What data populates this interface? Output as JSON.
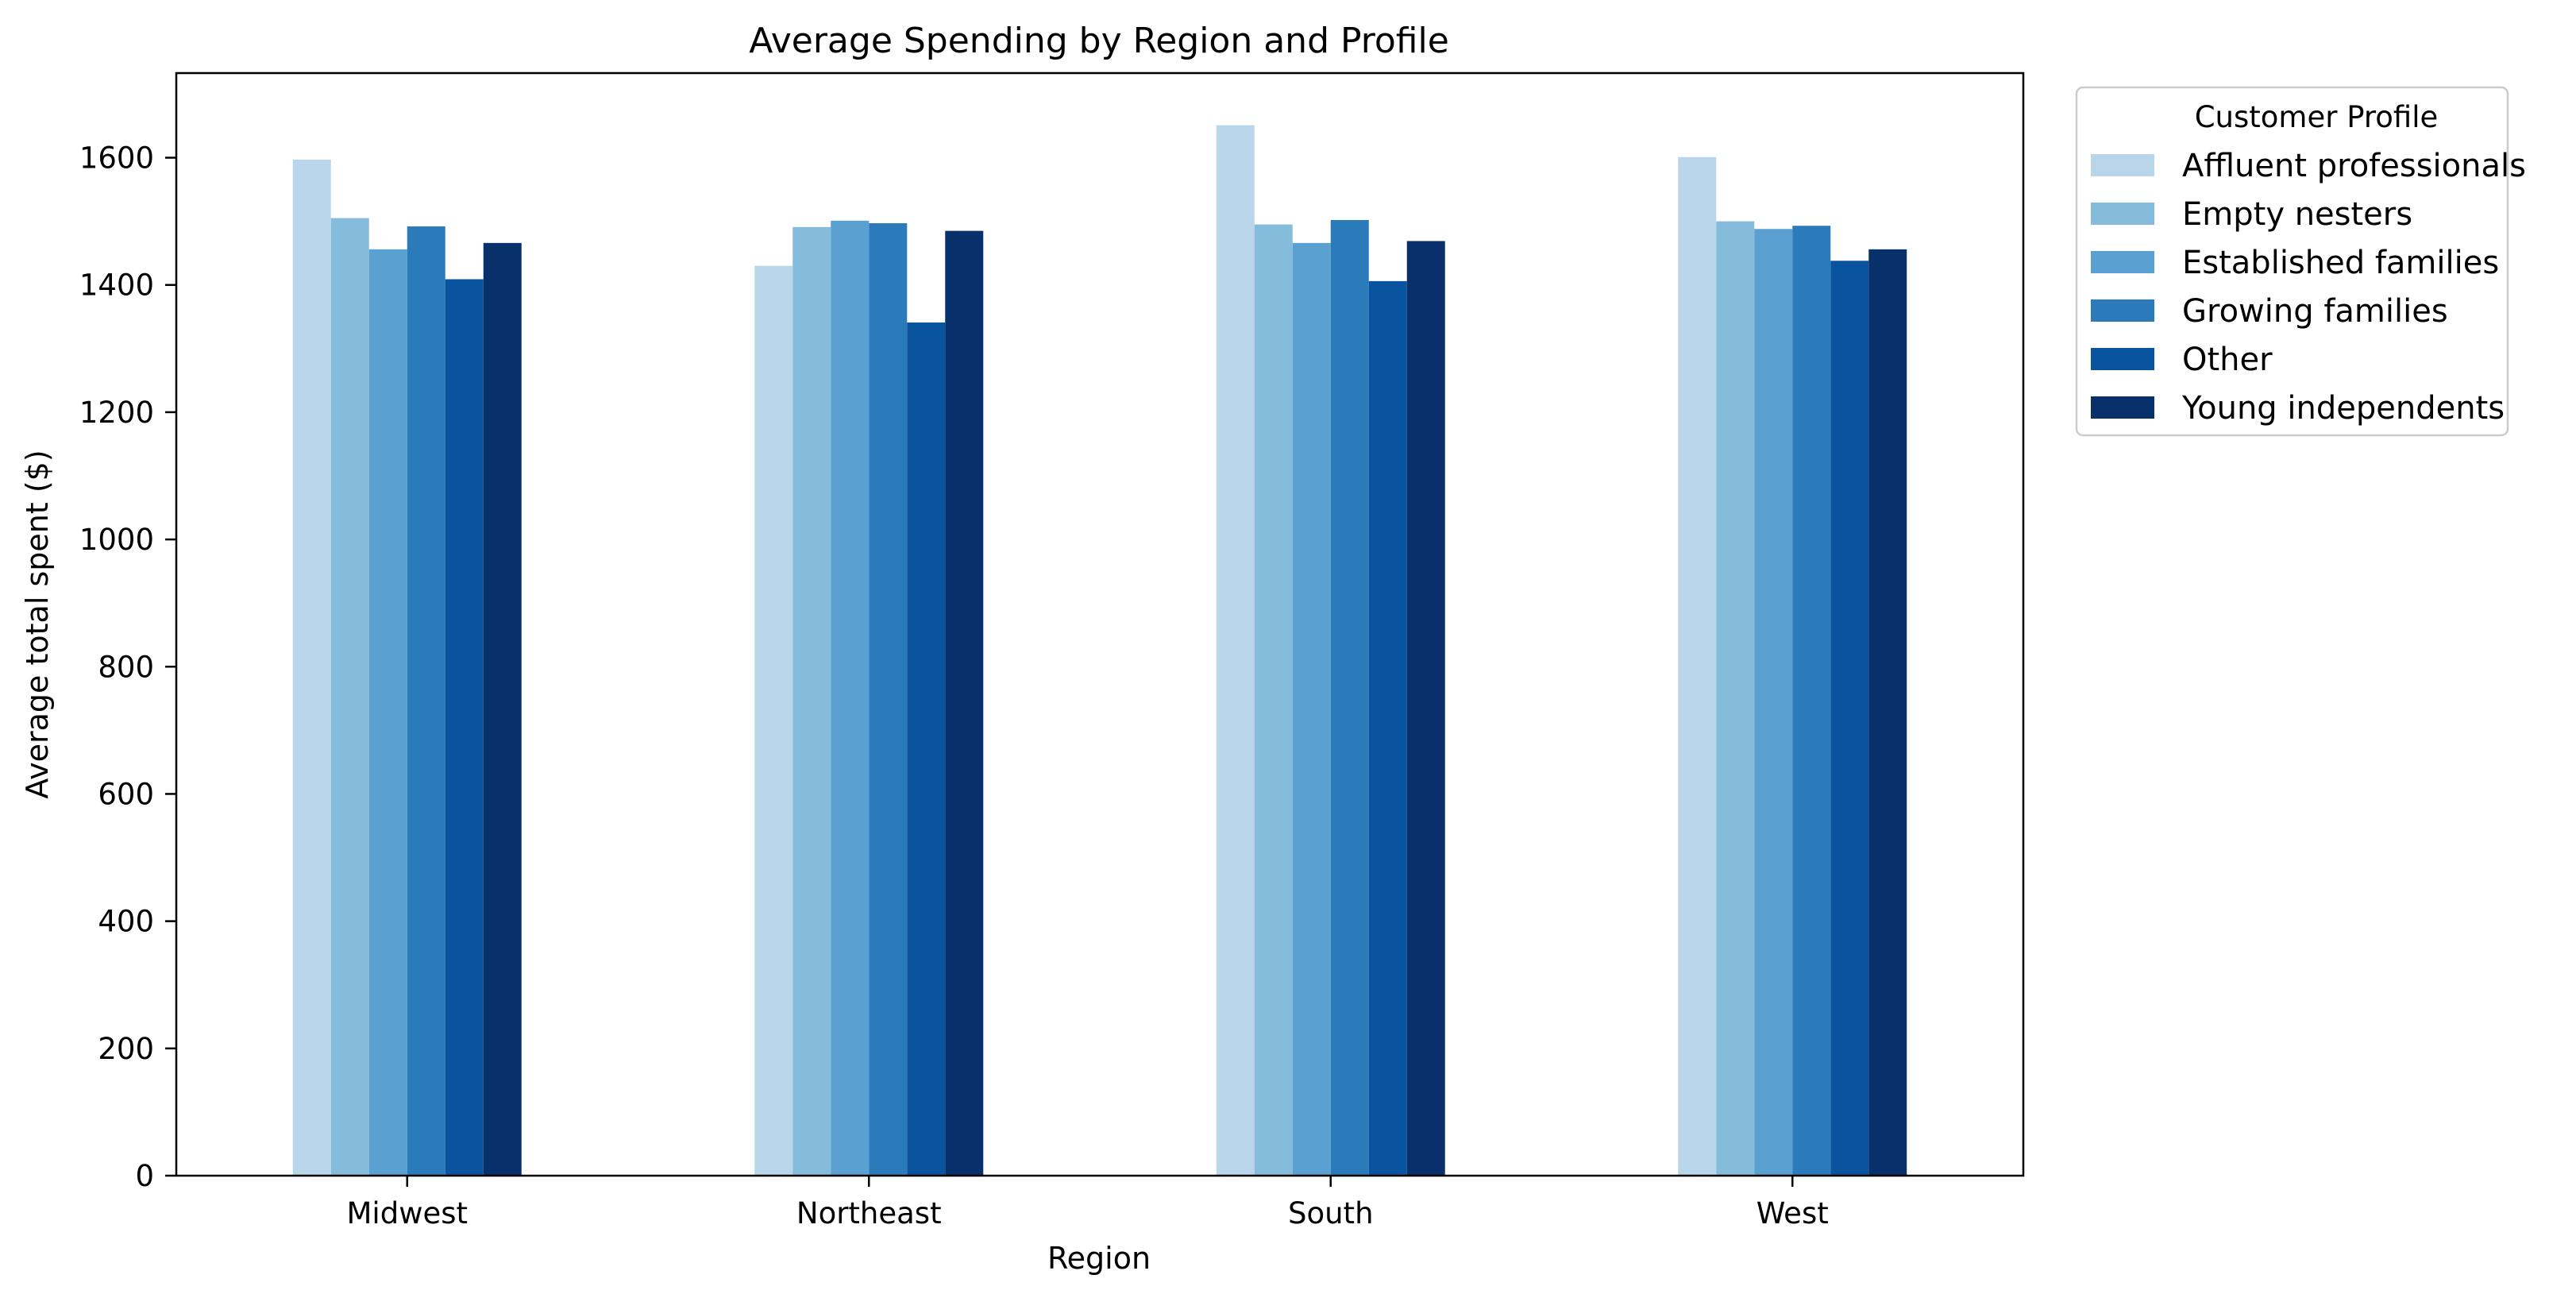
{
  "chart_data": {
    "type": "bar",
    "title": "Average Spending by Region and Profile",
    "xlabel": "Region",
    "ylabel": "Average total spent ($)",
    "categories": [
      "Midwest",
      "Northeast",
      "South",
      "West"
    ],
    "ylim": [
      0,
      1733
    ],
    "yticks": [
      0,
      200,
      400,
      600,
      800,
      1000,
      1200,
      1400,
      1600
    ],
    "grid": false,
    "legend": {
      "title": "Customer Profile",
      "placement": "outside-top-right"
    },
    "series": [
      {
        "name": "Affluent professionals",
        "color": "#b9d5ea",
        "values": [
          1597,
          1430,
          1651,
          1601
        ]
      },
      {
        "name": "Empty nesters",
        "color": "#85bcdb",
        "values": [
          1505,
          1491,
          1495,
          1500
        ]
      },
      {
        "name": "Established families",
        "color": "#5aa0d0",
        "values": [
          1456,
          1501,
          1466,
          1488
        ]
      },
      {
        "name": "Growing families",
        "color": "#2b7bba",
        "values": [
          1492,
          1497,
          1502,
          1493
        ]
      },
      {
        "name": "Other",
        "color": "#0a539e",
        "values": [
          1409,
          1341,
          1406,
          1438
        ]
      },
      {
        "name": "Young independents",
        "color": "#08306b",
        "values": [
          1466,
          1485,
          1469,
          1456
        ]
      }
    ]
  }
}
